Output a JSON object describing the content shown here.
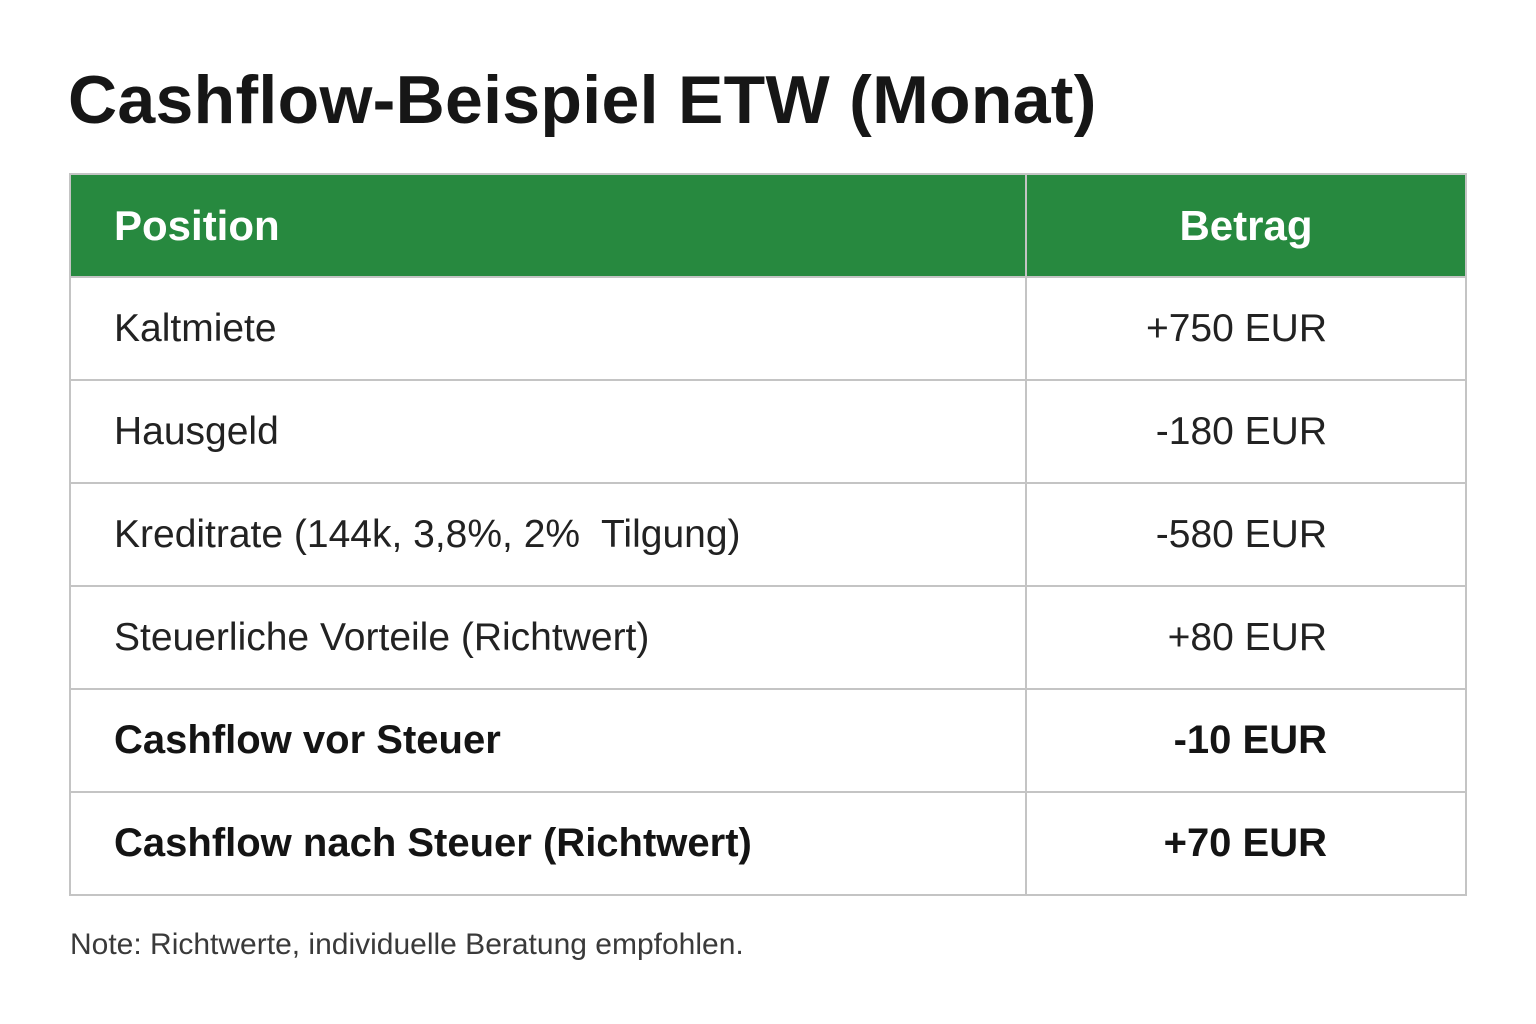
{
  "title": "Cashflow-Beispiel ETW (Monat)",
  "table": {
    "headers": {
      "position": "Position",
      "amount": "Betrag"
    },
    "rows": [
      {
        "position": "Kaltmiete",
        "amount": "+750 EUR",
        "emphasis": false
      },
      {
        "position": "Hausgeld",
        "amount": "-180 EUR",
        "emphasis": false
      },
      {
        "position": "Kreditrate (144k, 3,8%, 2%  Tilgung)",
        "amount": "-580 EUR",
        "emphasis": false
      },
      {
        "position": "Steuerliche Vorteile (Richtwert)",
        "amount": "+80 EUR",
        "emphasis": false
      },
      {
        "position": "Cashflow vor Steuer",
        "amount": "-10 EUR",
        "emphasis": true
      },
      {
        "position": "Cashflow nach Steuer (Richtwert)",
        "amount": "+70 EUR",
        "emphasis": true
      }
    ]
  },
  "note": "Note: Richtwerte, individuelle Beratung empfohlen.",
  "colors": {
    "header_background": "#27893f",
    "header_text": "#ffffff",
    "border": "#c4c4c4"
  }
}
